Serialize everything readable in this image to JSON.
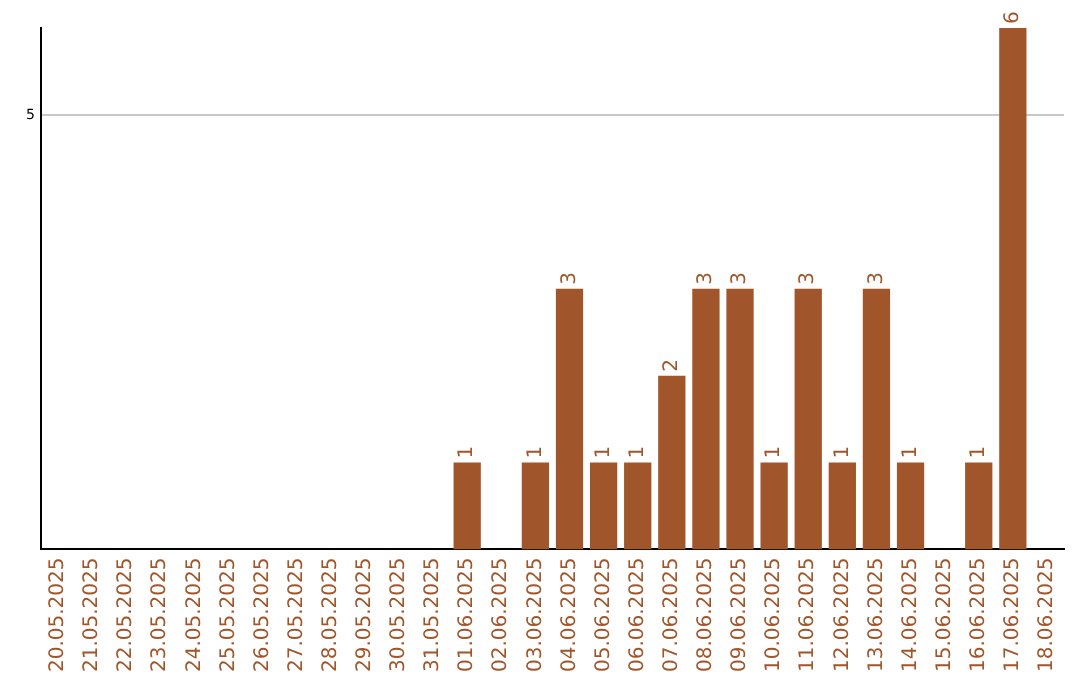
{
  "chart_data": {
    "type": "bar",
    "categories": [
      "20.05.2025",
      "21.05.2025",
      "22.05.2025",
      "23.05.2025",
      "24.05.2025",
      "25.05.2025",
      "26.05.2025",
      "27.05.2025",
      "28.05.2025",
      "29.05.2025",
      "30.05.2025",
      "31.05.2025",
      "01.06.2025",
      "02.06.2025",
      "03.06.2025",
      "04.06.2025",
      "05.06.2025",
      "06.06.2025",
      "07.06.2025",
      "08.06.2025",
      "09.06.2025",
      "10.06.2025",
      "11.06.2025",
      "12.06.2025",
      "13.06.2025",
      "14.06.2025",
      "15.06.2025",
      "16.06.2025",
      "17.06.2025",
      "18.06.2025"
    ],
    "values": [
      null,
      null,
      null,
      null,
      null,
      null,
      null,
      null,
      null,
      null,
      null,
      null,
      1,
      null,
      1,
      3,
      1,
      1,
      2,
      3,
      3,
      1,
      3,
      1,
      3,
      1,
      null,
      1,
      6,
      null
    ],
    "data_labels": true,
    "color": "#a0562a",
    "ylim": [
      0,
      6
    ],
    "yticks": [
      5
    ],
    "grid": "y"
  }
}
